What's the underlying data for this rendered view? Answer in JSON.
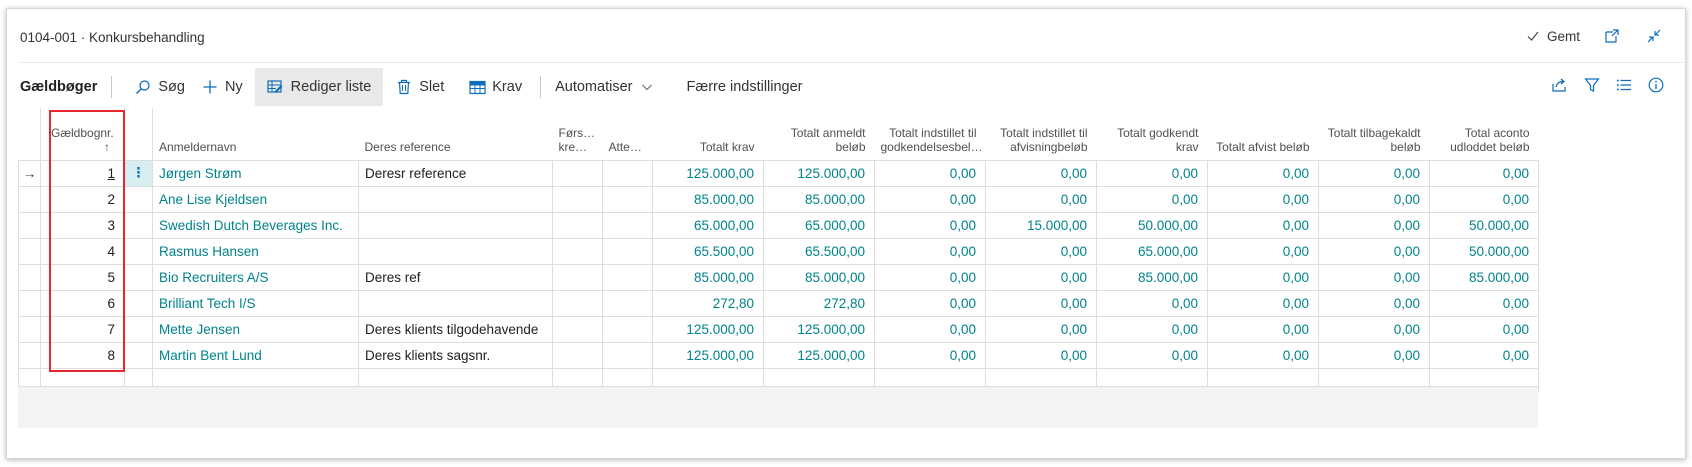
{
  "header": {
    "title": "0104-001 · Konkursbehandling",
    "saved_label": "Gemt"
  },
  "actionbar": {
    "title": "Gældbøger",
    "buttons": {
      "search": "Søg",
      "new": "Ny",
      "edit_list": "Rediger liste",
      "delete": "Slet",
      "claims": "Krav",
      "automate": "Automatiser",
      "fewer_options": "Færre indstillinger"
    }
  },
  "grid": {
    "columns": {
      "no": "Gældbognr.",
      "sort_indicator": "↑",
      "claimant": "Anmeldernavn",
      "reference": "Deres reference",
      "first_creditor": "Førs… kre…",
      "attest": "Atte…",
      "total_claim": "Totalt krav",
      "total_reported_1": "Totalt anmeldt",
      "total_reported_2": "beløb",
      "total_approval_1": "Totalt indstillet til",
      "total_approval_2": "godkendelsesbel…",
      "total_rejection_1": "Totalt indstillet til",
      "total_rejection_2": "afvisningbeløb",
      "total_approved_1": "Totalt godkendt",
      "total_approved_2": "krav",
      "total_rejected": "Totalt afvist beløb",
      "total_withdrawn_1": "Totalt tilbagekaldt",
      "total_withdrawn_2": "beløb",
      "total_aconto_1": "Total aconto",
      "total_aconto_2": "udloddet beløb"
    },
    "row_menu_glyph": "⋮",
    "row_pointer_glyph": "→",
    "rows": [
      {
        "no": "1",
        "name": "Jørgen Strøm",
        "ref": "Deresr reference",
        "claim": "125.000,00",
        "reported": "125.000,00",
        "approval": "0,00",
        "rejection": "0,00",
        "approved": "0,00",
        "rejected": "0,00",
        "withdrawn": "0,00",
        "aconto": "0,00"
      },
      {
        "no": "2",
        "name": "Ane Lise Kjeldsen",
        "ref": "",
        "claim": "85.000,00",
        "reported": "85.000,00",
        "approval": "0,00",
        "rejection": "0,00",
        "approved": "0,00",
        "rejected": "0,00",
        "withdrawn": "0,00",
        "aconto": "0,00"
      },
      {
        "no": "3",
        "name": "Swedish Dutch Beverages Inc.",
        "ref": "",
        "claim": "65.000,00",
        "reported": "65.000,00",
        "approval": "0,00",
        "rejection": "15.000,00",
        "approved": "50.000,00",
        "rejected": "0,00",
        "withdrawn": "0,00",
        "aconto": "50.000,00"
      },
      {
        "no": "4",
        "name": "Rasmus Hansen",
        "ref": "",
        "claim": "65.500,00",
        "reported": "65.500,00",
        "approval": "0,00",
        "rejection": "0,00",
        "approved": "65.000,00",
        "rejected": "0,00",
        "withdrawn": "0,00",
        "aconto": "50.000,00"
      },
      {
        "no": "5",
        "name": "Bio Recruiters A/S",
        "ref": "Deres ref",
        "claim": "85.000,00",
        "reported": "85.000,00",
        "approval": "0,00",
        "rejection": "0,00",
        "approved": "85.000,00",
        "rejected": "0,00",
        "withdrawn": "0,00",
        "aconto": "85.000,00"
      },
      {
        "no": "6",
        "name": "Brilliant Tech I/S",
        "ref": "",
        "claim": "272,80",
        "reported": "272,80",
        "approval": "0,00",
        "rejection": "0,00",
        "approved": "0,00",
        "rejected": "0,00",
        "withdrawn": "0,00",
        "aconto": "0,00"
      },
      {
        "no": "7",
        "name": "Mette Jensen",
        "ref": "Deres klients tilgodehavende",
        "claim": "125.000,00",
        "reported": "125.000,00",
        "approval": "0,00",
        "rejection": "0,00",
        "approved": "0,00",
        "rejected": "0,00",
        "withdrawn": "0,00",
        "aconto": "0,00"
      },
      {
        "no": "8",
        "name": "Martin Bent Lund",
        "ref": "Deres klients sagsnr.",
        "claim": "125.000,00",
        "reported": "125.000,00",
        "approval": "0,00",
        "rejection": "0,00",
        "approved": "0,00",
        "rejected": "0,00",
        "withdrawn": "0,00",
        "aconto": "0,00"
      }
    ]
  },
  "colors": {
    "link": "#00838a",
    "highlight": "#e8272f",
    "selected_cell": "#d6eef0",
    "active_button": "#e9e9e9"
  }
}
